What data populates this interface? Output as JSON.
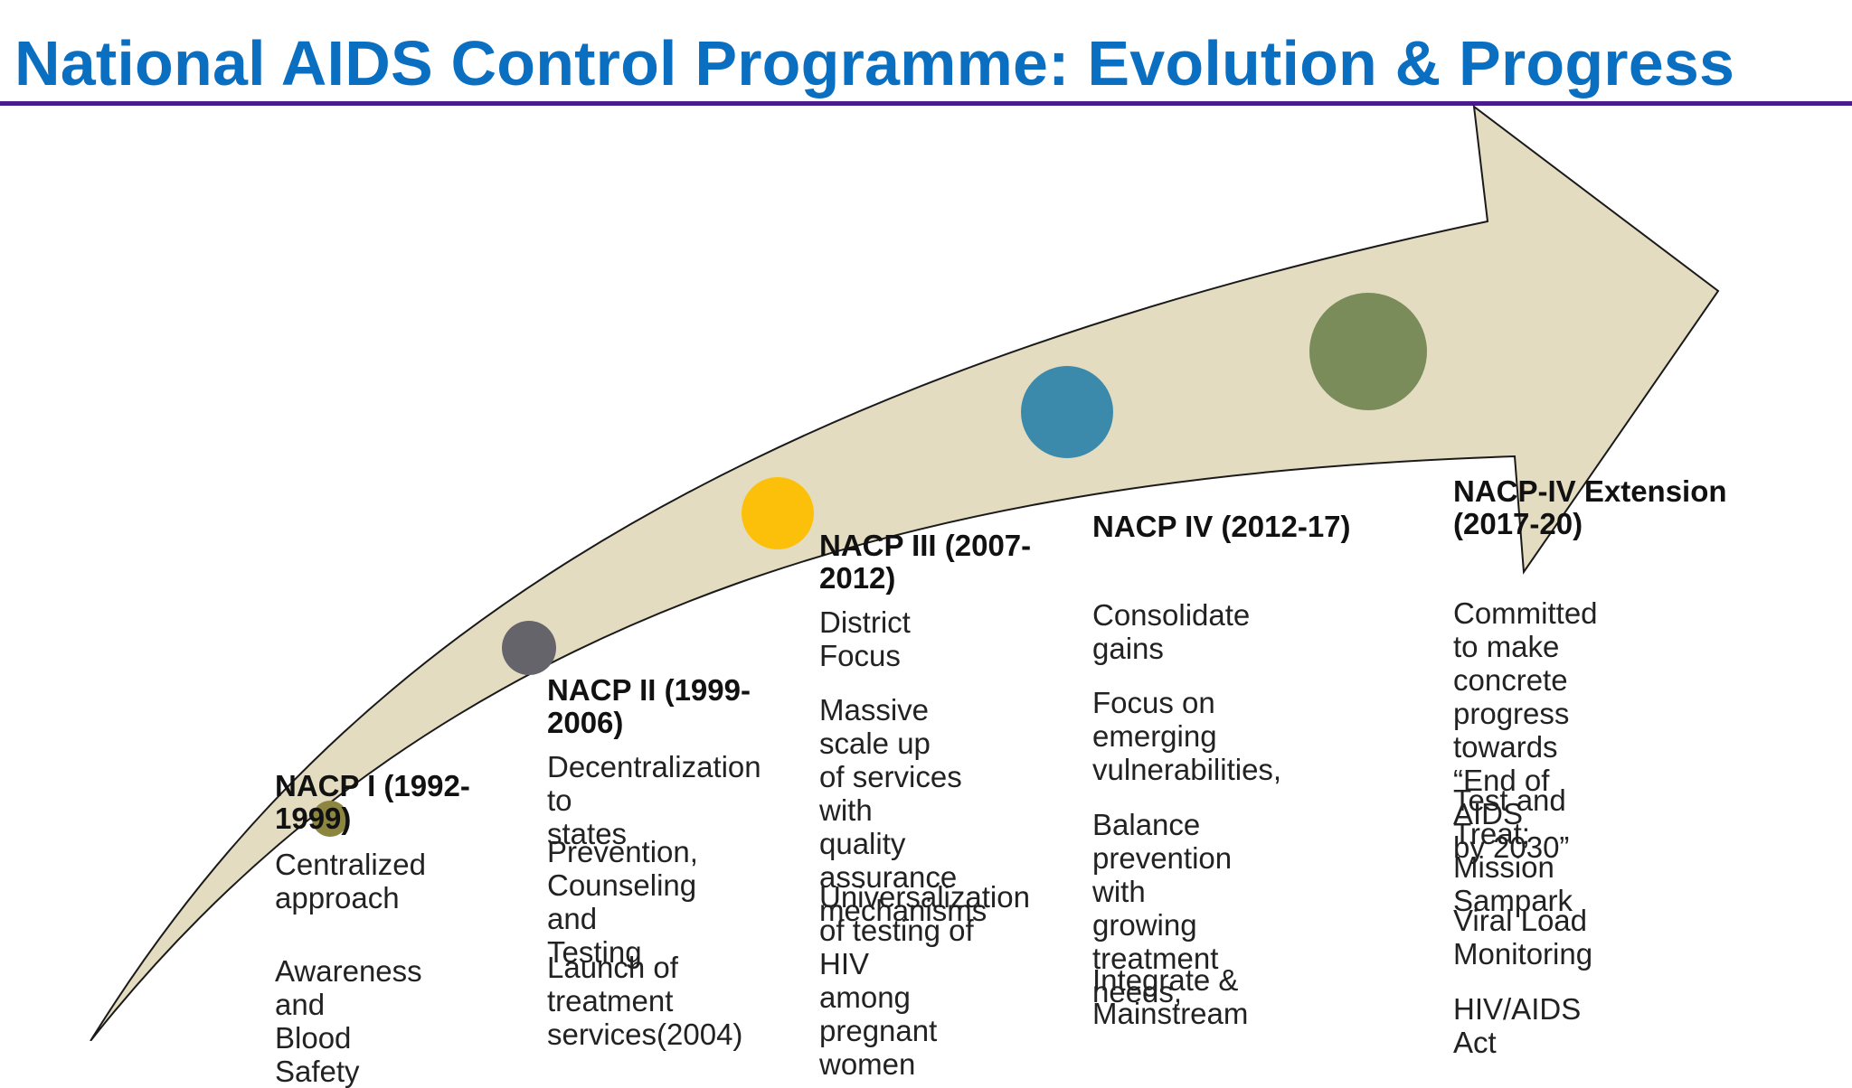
{
  "title": "National AIDS Control Programme: Evolution & Progress",
  "colors": {
    "title": "#0a6fc0",
    "rule": "#4b1a8c",
    "arrow_fill": "#e4dcc0",
    "arrow_stroke": "#1a1a1a",
    "dot_phase1": "#8c8640",
    "dot_phase2": "#65646a",
    "dot_phase3": "#fcc00a",
    "dot_phase4": "#3c8aab",
    "dot_phase5": "#798c5a"
  },
  "phases": [
    {
      "title": "NACP I (1992-\n1999)",
      "items": [
        "Centralized\napproach",
        "Awareness and\nBlood Safety"
      ]
    },
    {
      "title": "NACP II (1999-\n2006)",
      "items": [
        "Decentralization to\nstates",
        "Prevention,\nCounseling and\nTesting",
        "Launch of\ntreatment\nservices(2004)"
      ]
    },
    {
      "title": "NACP III (2007-\n2012)",
      "items": [
        "District Focus",
        "Massive scale up\nof services with\nquality assurance\nmechanisms",
        "Universalization\nof testing of HIV\namong pregnant\nwomen"
      ]
    },
    {
      "title": "NACP IV (2012-17)",
      "items": [
        "Consolidate gains",
        "Focus on emerging\nvulnerabilities,",
        "Balance  prevention\nwith growing\ntreatment needs,",
        "Integrate &\nMainstream"
      ]
    },
    {
      "title": "NACP-IV Extension\n(2017-20)",
      "items": [
        "Committed to make\nconcrete progress\ntowards “End of AIDS\nby 2030”",
        "Test and Treat;\nMission Sampark",
        "Viral Load Monitoring",
        "HIV/AIDS Act"
      ]
    }
  ]
}
